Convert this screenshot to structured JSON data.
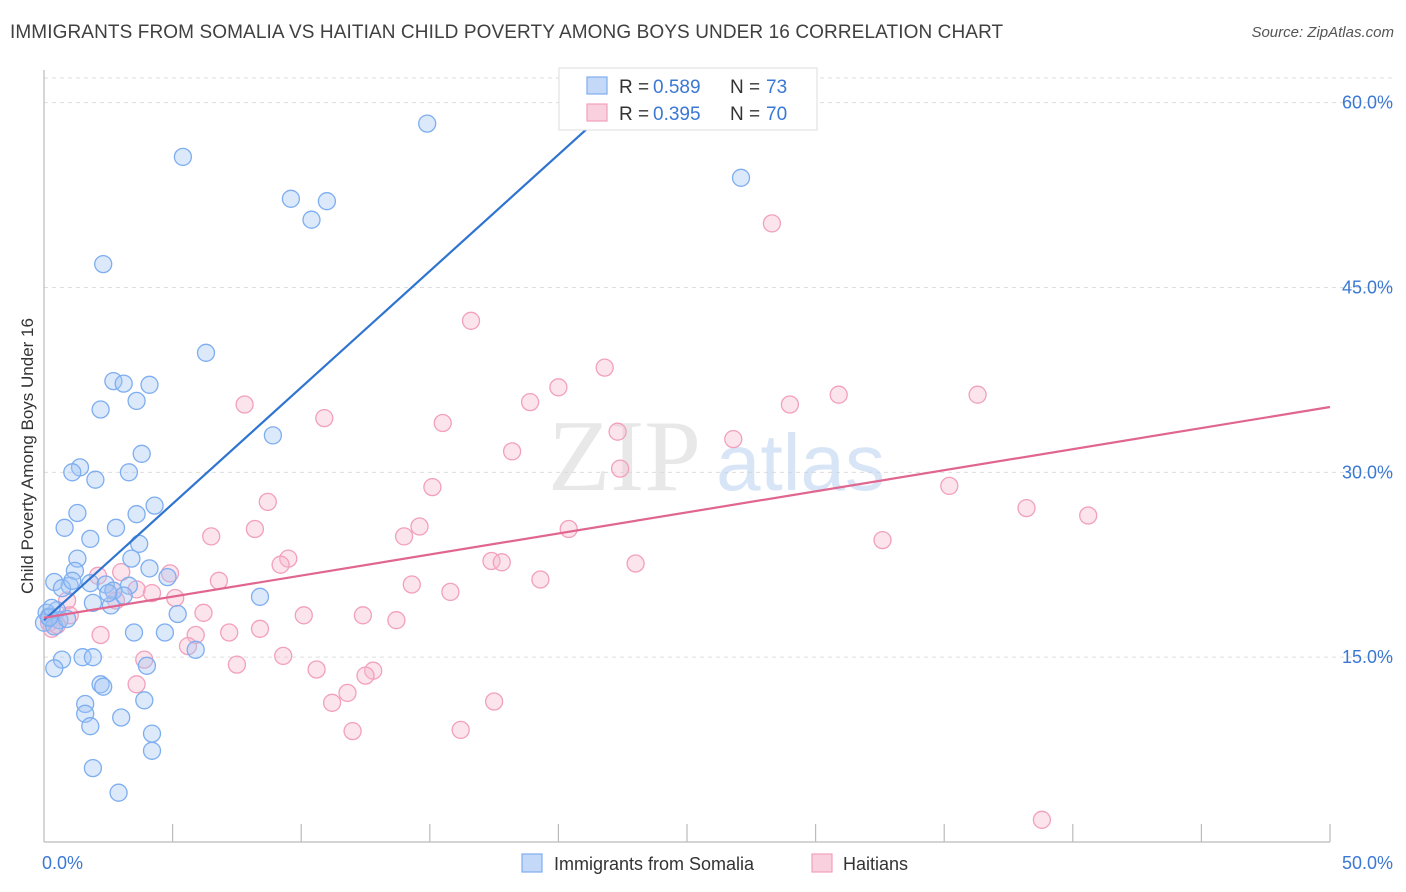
{
  "title": "IMMIGRANTS FROM SOMALIA VS HAITIAN CHILD POVERTY AMONG BOYS UNDER 16 CORRELATION CHART",
  "source": "Source: ZipAtlas.com",
  "watermark": {
    "zip": "ZIP",
    "atlas": "atlas"
  },
  "chart_data": {
    "type": "scatter",
    "title": "IMMIGRANTS FROM SOMALIA VS HAITIAN CHILD POVERTY AMONG BOYS UNDER 16 CORRELATION CHART",
    "xlabel": "",
    "ylabel": "Child Poverty Among Boys Under 16",
    "xlim": [
      0,
      50
    ],
    "ylim": [
      0,
      62
    ],
    "x_tick_labels": [
      "0.0%",
      "50.0%"
    ],
    "y_ticks": [
      15,
      30,
      45,
      60
    ],
    "y_tick_labels": [
      "15.0%",
      "30.0%",
      "45.0%",
      "60.0%"
    ],
    "grid": true,
    "legend": {
      "position": "top-center",
      "entries": [
        {
          "r_label": "R =",
          "r_value": "0.589",
          "n_label": "N =",
          "n_value": "73",
          "color": "#7eaef0"
        },
        {
          "r_label": "R =",
          "r_value": "0.395",
          "n_label": "N =",
          "n_value": "70",
          "color": "#f2a0bc"
        }
      ]
    },
    "bottom_legend": [
      "Immigrants from Somalia",
      "Haitians"
    ],
    "series": [
      {
        "name": "Immigrants from Somalia",
        "color": "#7eaef0",
        "line_color": "#2f74d0",
        "trend": {
          "x0": 0.0,
          "y0": 18.0,
          "x1": 22.5,
          "y1": 60.5
        },
        "points": [
          [
            14.9,
            58.3
          ],
          [
            5.4,
            55.6
          ],
          [
            27.1,
            53.9
          ],
          [
            9.6,
            52.2
          ],
          [
            11.0,
            52.0
          ],
          [
            10.4,
            50.5
          ],
          [
            2.3,
            46.9
          ],
          [
            6.3,
            39.7
          ],
          [
            2.7,
            37.4
          ],
          [
            3.1,
            37.2
          ],
          [
            4.1,
            37.1
          ],
          [
            3.6,
            35.8
          ],
          [
            2.2,
            35.1
          ],
          [
            8.9,
            33.0
          ],
          [
            3.8,
            31.5
          ],
          [
            1.4,
            30.4
          ],
          [
            1.1,
            30.0
          ],
          [
            3.3,
            30.0
          ],
          [
            2.0,
            29.4
          ],
          [
            4.3,
            27.3
          ],
          [
            1.3,
            26.7
          ],
          [
            3.6,
            26.6
          ],
          [
            0.8,
            25.5
          ],
          [
            2.8,
            25.5
          ],
          [
            1.8,
            24.6
          ],
          [
            3.7,
            24.2
          ],
          [
            1.3,
            23.0
          ],
          [
            3.4,
            23.0
          ],
          [
            4.1,
            22.2
          ],
          [
            1.2,
            22.0
          ],
          [
            4.8,
            21.5
          ],
          [
            0.4,
            21.1
          ],
          [
            1.8,
            21.0
          ],
          [
            2.4,
            20.9
          ],
          [
            3.3,
            20.8
          ],
          [
            1.0,
            20.8
          ],
          [
            0.7,
            20.6
          ],
          [
            2.7,
            20.4
          ],
          [
            3.1,
            20.0
          ],
          [
            8.4,
            19.9
          ],
          [
            1.9,
            19.4
          ],
          [
            2.6,
            19.2
          ],
          [
            0.5,
            18.8
          ],
          [
            0.1,
            18.6
          ],
          [
            0.2,
            18.3
          ],
          [
            5.2,
            18.5
          ],
          [
            0.6,
            18.0
          ],
          [
            0.0,
            17.8
          ],
          [
            0.4,
            17.5
          ],
          [
            3.5,
            17.0
          ],
          [
            4.7,
            17.0
          ],
          [
            5.9,
            15.6
          ],
          [
            1.5,
            15.0
          ],
          [
            1.9,
            15.0
          ],
          [
            0.7,
            14.8
          ],
          [
            4.0,
            14.3
          ],
          [
            0.4,
            14.1
          ],
          [
            2.2,
            12.8
          ],
          [
            2.3,
            12.6
          ],
          [
            3.9,
            11.5
          ],
          [
            1.6,
            11.2
          ],
          [
            1.6,
            10.4
          ],
          [
            3.0,
            10.1
          ],
          [
            1.8,
            9.4
          ],
          [
            4.2,
            8.8
          ],
          [
            4.2,
            7.4
          ],
          [
            1.9,
            6.0
          ],
          [
            2.9,
            4.0
          ],
          [
            0.2,
            18.2
          ],
          [
            0.3,
            19.0
          ],
          [
            1.1,
            21.2
          ],
          [
            2.5,
            20.2
          ],
          [
            0.9,
            18.1
          ]
        ]
      },
      {
        "name": "Haitians",
        "color": "#f2a0bc",
        "line_color": "#e06690",
        "trend": {
          "x0": 0.0,
          "y0": 18.2,
          "x1": 50.0,
          "y1": 35.3
        },
        "points": [
          [
            28.3,
            50.2
          ],
          [
            16.6,
            42.3
          ],
          [
            21.8,
            38.5
          ],
          [
            30.9,
            36.3
          ],
          [
            20.0,
            36.9
          ],
          [
            18.9,
            35.7
          ],
          [
            7.8,
            35.5
          ],
          [
            36.3,
            36.3
          ],
          [
            29.0,
            35.5
          ],
          [
            10.9,
            34.4
          ],
          [
            15.5,
            34.0
          ],
          [
            22.3,
            33.3
          ],
          [
            26.8,
            32.7
          ],
          [
            18.2,
            31.7
          ],
          [
            22.4,
            30.3
          ],
          [
            15.1,
            28.8
          ],
          [
            35.2,
            28.9
          ],
          [
            38.2,
            27.1
          ],
          [
            8.7,
            27.6
          ],
          [
            40.6,
            26.5
          ],
          [
            8.2,
            25.4
          ],
          [
            14.6,
            25.6
          ],
          [
            20.4,
            25.4
          ],
          [
            6.5,
            24.8
          ],
          [
            14.0,
            24.8
          ],
          [
            32.6,
            24.5
          ],
          [
            9.5,
            23.0
          ],
          [
            17.4,
            22.8
          ],
          [
            23.0,
            22.6
          ],
          [
            17.8,
            22.7
          ],
          [
            9.2,
            22.5
          ],
          [
            3.0,
            21.9
          ],
          [
            4.9,
            21.8
          ],
          [
            2.1,
            21.6
          ],
          [
            6.8,
            21.2
          ],
          [
            19.3,
            21.3
          ],
          [
            14.3,
            20.9
          ],
          [
            15.8,
            20.3
          ],
          [
            3.6,
            20.5
          ],
          [
            4.2,
            20.2
          ],
          [
            5.1,
            19.8
          ],
          [
            2.8,
            19.6
          ],
          [
            0.9,
            19.6
          ],
          [
            6.2,
            18.6
          ],
          [
            10.1,
            18.4
          ],
          [
            12.4,
            18.4
          ],
          [
            13.7,
            18.0
          ],
          [
            1.0,
            18.4
          ],
          [
            0.2,
            17.8
          ],
          [
            0.3,
            17.3
          ],
          [
            0.5,
            17.6
          ],
          [
            8.4,
            17.3
          ],
          [
            7.2,
            17.0
          ],
          [
            2.2,
            16.8
          ],
          [
            5.9,
            16.8
          ],
          [
            5.6,
            15.9
          ],
          [
            9.3,
            15.1
          ],
          [
            3.9,
            14.8
          ],
          [
            7.5,
            14.4
          ],
          [
            10.6,
            14.0
          ],
          [
            12.8,
            13.9
          ],
          [
            12.5,
            13.5
          ],
          [
            3.6,
            12.8
          ],
          [
            11.8,
            12.1
          ],
          [
            11.2,
            11.3
          ],
          [
            17.5,
            11.4
          ],
          [
            16.2,
            9.1
          ],
          [
            12.0,
            9.0
          ],
          [
            38.8,
            1.8
          ],
          [
            2.7,
            20.4
          ]
        ]
      }
    ]
  }
}
